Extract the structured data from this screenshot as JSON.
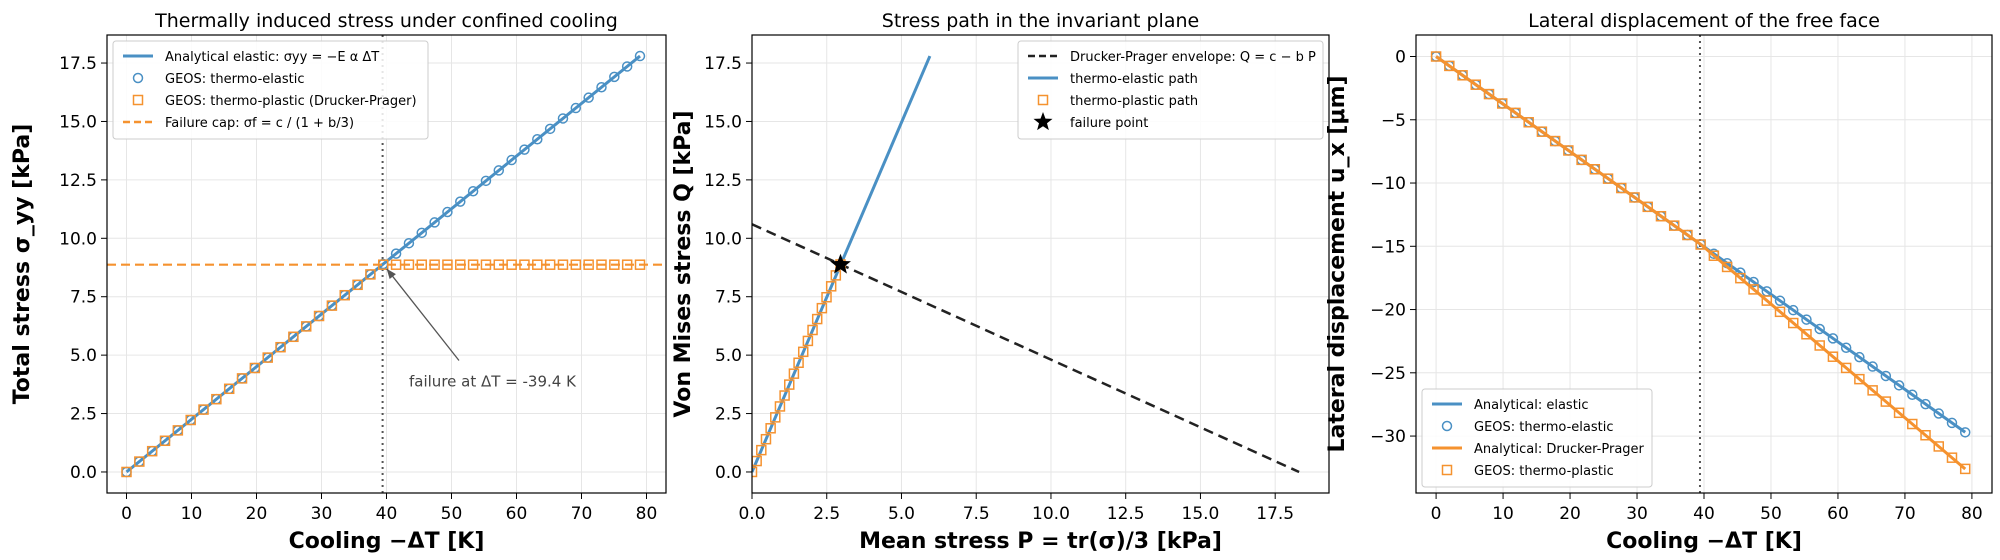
{
  "chart_data": [
    {
      "type": "line",
      "title": "Thermally induced stress under confined cooling",
      "xlabel": "Cooling  −ΔT  [K]",
      "ylabel": "Total stress  σ_yy  [kPa]",
      "xlim": [
        -3,
        83
      ],
      "ylim": [
        -0.9,
        18.7
      ],
      "xticks": [
        0,
        10,
        20,
        30,
        40,
        50,
        60,
        70,
        80
      ],
      "yticks": [
        0.0,
        2.5,
        5.0,
        7.5,
        10.0,
        12.5,
        15.0,
        17.5
      ],
      "grid": true,
      "legend": "top-left",
      "failure_x": 39.4,
      "failure_y": 8.87,
      "annotation": "failure at ΔT = -39.4 K",
      "annotation_pos": [
        45,
        4.0
      ],
      "series": [
        {
          "name": "Analytical elastic: σyy = −E α ΔT",
          "kind": "line",
          "color": "#4a90c4",
          "x": [
            0,
            79
          ],
          "y": [
            0,
            17.8
          ]
        },
        {
          "name": "GEOS: thermo-elastic",
          "kind": "circle",
          "color": "#4a90c4",
          "x_start": 0,
          "x_end": 79,
          "count": 41,
          "slope": 0.2253
        },
        {
          "name": "GEOS: thermo-plastic (Drucker-Prager)",
          "kind": "square",
          "color": "#f5922f",
          "x_start": 0,
          "x_end": 79,
          "count": 41,
          "slope": 0.2253,
          "cap": 8.87
        },
        {
          "name": "Failure cap: σf = c / (1 + b/3)",
          "kind": "hline",
          "color": "#f5922f",
          "y": 8.87
        }
      ]
    },
    {
      "type": "line",
      "title": "Stress path in the invariant plane",
      "xlabel": "Mean stress  P = tr(σ)/3  [kPa]",
      "ylabel": "Von Mises stress  Q  [kPa]",
      "xlim": [
        0,
        19.3
      ],
      "ylim": [
        -0.9,
        18.7
      ],
      "xticks": [
        0.0,
        2.5,
        5.0,
        7.5,
        10.0,
        12.5,
        15.0,
        17.5
      ],
      "yticks": [
        0.0,
        2.5,
        5.0,
        7.5,
        10.0,
        12.5,
        15.0,
        17.5
      ],
      "grid": true,
      "legend": "top-right",
      "series": [
        {
          "name": "Drucker-Prager envelope: Q = c − b P",
          "kind": "dashed",
          "color": "#222222",
          "x": [
            0,
            18.3
          ],
          "y": [
            10.6,
            0
          ]
        },
        {
          "name": "thermo-elastic path",
          "kind": "line",
          "color": "#4a90c4",
          "x": [
            0,
            5.95
          ],
          "y": [
            0,
            17.8
          ]
        },
        {
          "name": "thermo-plastic path",
          "kind": "square",
          "color": "#f5922f",
          "x_start": 0,
          "x_end": 2.96,
          "count": 20,
          "slope": 3.0
        },
        {
          "name": "failure point",
          "kind": "star",
          "color": "#000000",
          "x": [
            2.96
          ],
          "y": [
            8.87
          ]
        }
      ]
    },
    {
      "type": "line",
      "title": "Lateral displacement of the free face",
      "xlabel": "Cooling  −ΔT  [K]",
      "ylabel": "Lateral displacement  u_x  [μm]",
      "xlim": [
        -3,
        83
      ],
      "ylim": [
        -34.5,
        1.7
      ],
      "xticks": [
        0,
        10,
        20,
        30,
        40,
        50,
        60,
        70,
        80
      ],
      "yticks": [
        0,
        -5,
        -10,
        -15,
        -20,
        -25,
        -30
      ],
      "grid": true,
      "legend": "bottom-left",
      "failure_x": 39.4,
      "series": [
        {
          "name": "Analytical: elastic",
          "kind": "line",
          "color": "#4a90c4",
          "x": [
            0,
            79
          ],
          "y": [
            0,
            -29.7
          ]
        },
        {
          "name": "GEOS: thermo-elastic",
          "kind": "circle",
          "color": "#4a90c4",
          "x_start": 0,
          "x_end": 79,
          "count": 41,
          "slope": -0.376
        },
        {
          "name": "Analytical: Drucker-Prager",
          "kind": "line",
          "color": "#f5922f",
          "x": [
            0,
            39.4,
            79
          ],
          "y": [
            0,
            -14.8,
            -32.6
          ]
        },
        {
          "name": "GEOS: thermo-plastic",
          "kind": "square",
          "color": "#f5922f",
          "x_start": 0,
          "x_end": 79,
          "count": 41,
          "slope": -0.376,
          "slope2": -0.449,
          "break": 39.4
        }
      ]
    }
  ]
}
